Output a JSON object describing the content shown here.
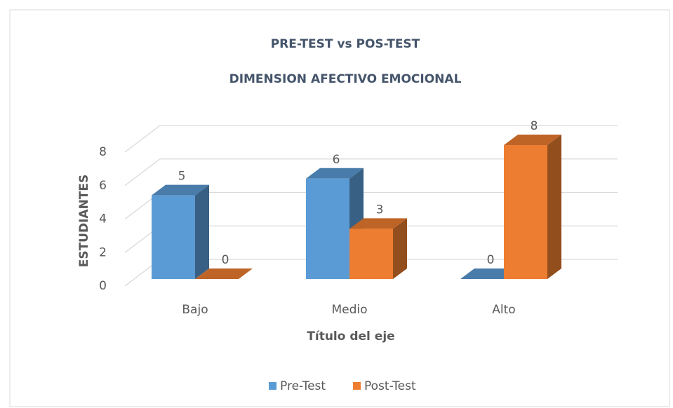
{
  "chart_data": {
    "type": "bar3d",
    "title": [
      "PRE-TEST vs POS-TEST",
      "DIMENSION AFECTIVO EMOCIONAL"
    ],
    "x_label": "Título del eje",
    "y_label": "ESTUDIANTES",
    "categories": [
      "Bajo",
      "Medio",
      "Alto"
    ],
    "series": [
      {
        "name": "Pre-Test",
        "color": "#5b9bd5",
        "values": [
          5,
          6,
          0
        ]
      },
      {
        "name": "Post-Test",
        "color": "#ed7d31",
        "values": [
          0,
          3,
          8
        ]
      }
    ],
    "ylim": [
      0,
      8
    ],
    "yticks": [
      0,
      2,
      4,
      6,
      8
    ],
    "grid": true,
    "legend": "bottom"
  }
}
